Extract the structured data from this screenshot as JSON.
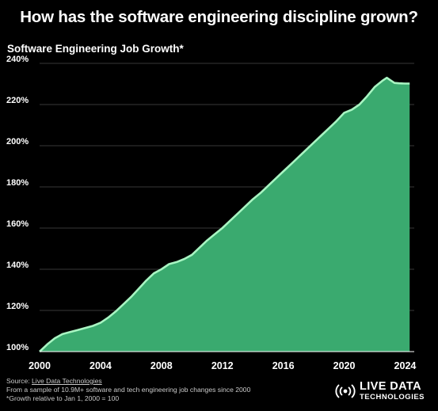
{
  "header": {
    "title": "How has the software engineering discipline grown?",
    "subtitle": "Software Engineering Job Growth*"
  },
  "footer": {
    "source_prefix": "Source: ",
    "source_link": "Live Data Technologies",
    "note1": "From a sample of 10.9M+ software and tech engineering job changes since 2000",
    "note2": "*Growth relative to Jan 1, 2000 = 100"
  },
  "logo": {
    "line1": "LIVE DATA",
    "line2": "TECHNOLOGIES",
    "icon": "broadcast-icon"
  },
  "colors": {
    "background": "#000000",
    "area_fill": "#3aaa6f",
    "line": "#a8f5c2",
    "grid": "#4a4a4a",
    "text": "#ffffff"
  },
  "chart_data": {
    "type": "area",
    "title": "Software Engineering Job Growth*",
    "xlabel": "",
    "ylabel": "",
    "x_ticks": [
      "2000",
      "2004",
      "2008",
      "2012",
      "2016",
      "2020",
      "2024"
    ],
    "y_ticks": [
      "100%",
      "120%",
      "140%",
      "160%",
      "180%",
      "200%",
      "220%",
      "240%"
    ],
    "xlim": [
      2000,
      2024.6
    ],
    "ylim": [
      100,
      240
    ],
    "grid": "horizontal",
    "legend": "none",
    "series": [
      {
        "x": [
          2000,
          2000.5,
          2001,
          2001.5,
          2002,
          2002.5,
          2003,
          2003.5,
          2004,
          2004.5,
          2005,
          2005.5,
          2006,
          2006.5,
          2007,
          2007.5,
          2008,
          2008.5,
          2009,
          2009.5,
          2010,
          2010.5,
          2011,
          2011.5,
          2012,
          2012.5,
          2013,
          2013.5,
          2014,
          2014.5,
          2015,
          2015.5,
          2016,
          2016.5,
          2017,
          2017.5,
          2018,
          2018.5,
          2019,
          2019.5,
          2020,
          2020.5,
          2021,
          2021.5,
          2022,
          2022.5,
          2022.8,
          2023,
          2023.3,
          2023.6,
          2024,
          2024.3
        ],
        "values": [
          100,
          103.5,
          106.5,
          108.5,
          109.5,
          110.5,
          111.5,
          112.5,
          114,
          116.5,
          119.5,
          123,
          126.5,
          130.5,
          134.5,
          138,
          140,
          142.5,
          143.5,
          145,
          147,
          150.5,
          154,
          157,
          160,
          163.5,
          167,
          170.5,
          174,
          177,
          180.5,
          184,
          187.5,
          191,
          194.5,
          198,
          201.5,
          205,
          208.5,
          212,
          216,
          217.5,
          220,
          224,
          228.5,
          231.5,
          233,
          232,
          230.5,
          230.3,
          230.2,
          230.2
        ]
      }
    ]
  }
}
